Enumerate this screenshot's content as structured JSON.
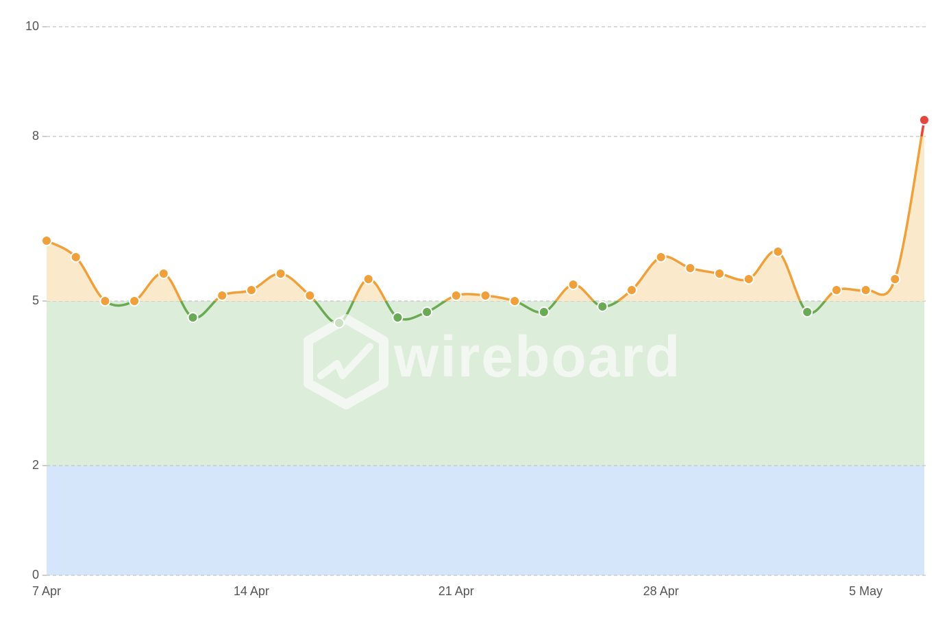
{
  "chart_data": {
    "type": "line",
    "categories": [
      "7 Apr",
      null,
      null,
      null,
      null,
      null,
      null,
      "14 Apr",
      null,
      null,
      null,
      null,
      null,
      null,
      "21 Apr",
      null,
      null,
      null,
      null,
      null,
      null,
      "28 Apr",
      null,
      null,
      null,
      null,
      null,
      null,
      "5 May",
      null,
      null
    ],
    "values": [
      6.1,
      5.8,
      5.0,
      5.0,
      5.5,
      4.7,
      5.1,
      5.2,
      5.5,
      5.1,
      4.6,
      5.4,
      4.7,
      4.8,
      5.1,
      5.1,
      5.0,
      4.8,
      5.3,
      4.9,
      5.2,
      5.8,
      5.6,
      5.5,
      5.4,
      5.9,
      4.8,
      5.2,
      5.2,
      5.4,
      8.3
    ],
    "zones": [
      {
        "from": 0,
        "to": 5,
        "color": "#6aaa55"
      },
      {
        "from": 5,
        "to": 8,
        "color": "#f0a03a"
      },
      {
        "from": 8,
        "to": 10,
        "color": "#e2463c"
      }
    ],
    "bands": [
      {
        "from": 0,
        "to": 2,
        "color": "#d5e6fb"
      },
      {
        "from": 2,
        "to": 5,
        "color": "#dcedd9"
      }
    ],
    "area_fill": {
      "from": 5,
      "color": "#fbe9cc"
    },
    "ylim": [
      0,
      10
    ],
    "yticks": [
      0,
      2,
      5,
      8,
      10
    ],
    "grid": true,
    "watermark": "wireboard"
  }
}
